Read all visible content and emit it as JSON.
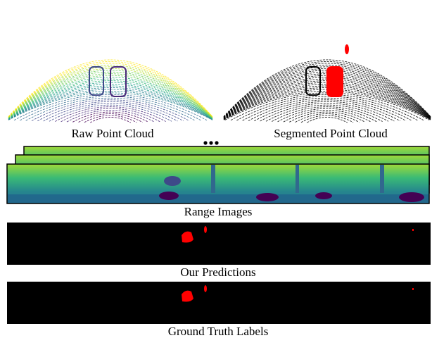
{
  "figure": {
    "captions": {
      "raw_point_cloud": "Raw Point Cloud",
      "segmented_point_cloud": "Segmented Point Cloud",
      "range_images": "Range Images",
      "our_predictions": "Our Predictions",
      "ground_truth_labels": "Ground Truth Labels"
    }
  }
}
